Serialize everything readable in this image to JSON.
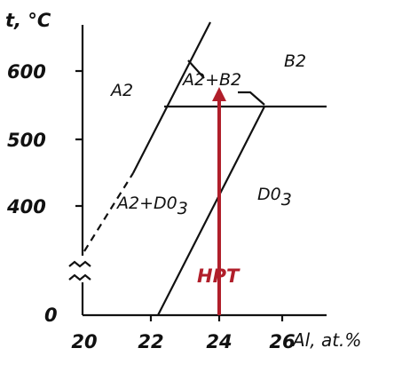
{
  "axes": {
    "y_label": "t, °C",
    "x_label": "Al, at.%",
    "x_ticks": [
      "20",
      "22",
      "24",
      "26"
    ],
    "y_ticks": [
      "600",
      "500",
      "400",
      "0"
    ]
  },
  "regions": {
    "a2": "A2",
    "b2": "B2",
    "a2_b2": "A2+B2",
    "a2_d03": {
      "main": "A2+D0",
      "sub": "3"
    },
    "d03": {
      "main": "D0",
      "sub": "3"
    }
  },
  "arrow_label": "HPT"
}
